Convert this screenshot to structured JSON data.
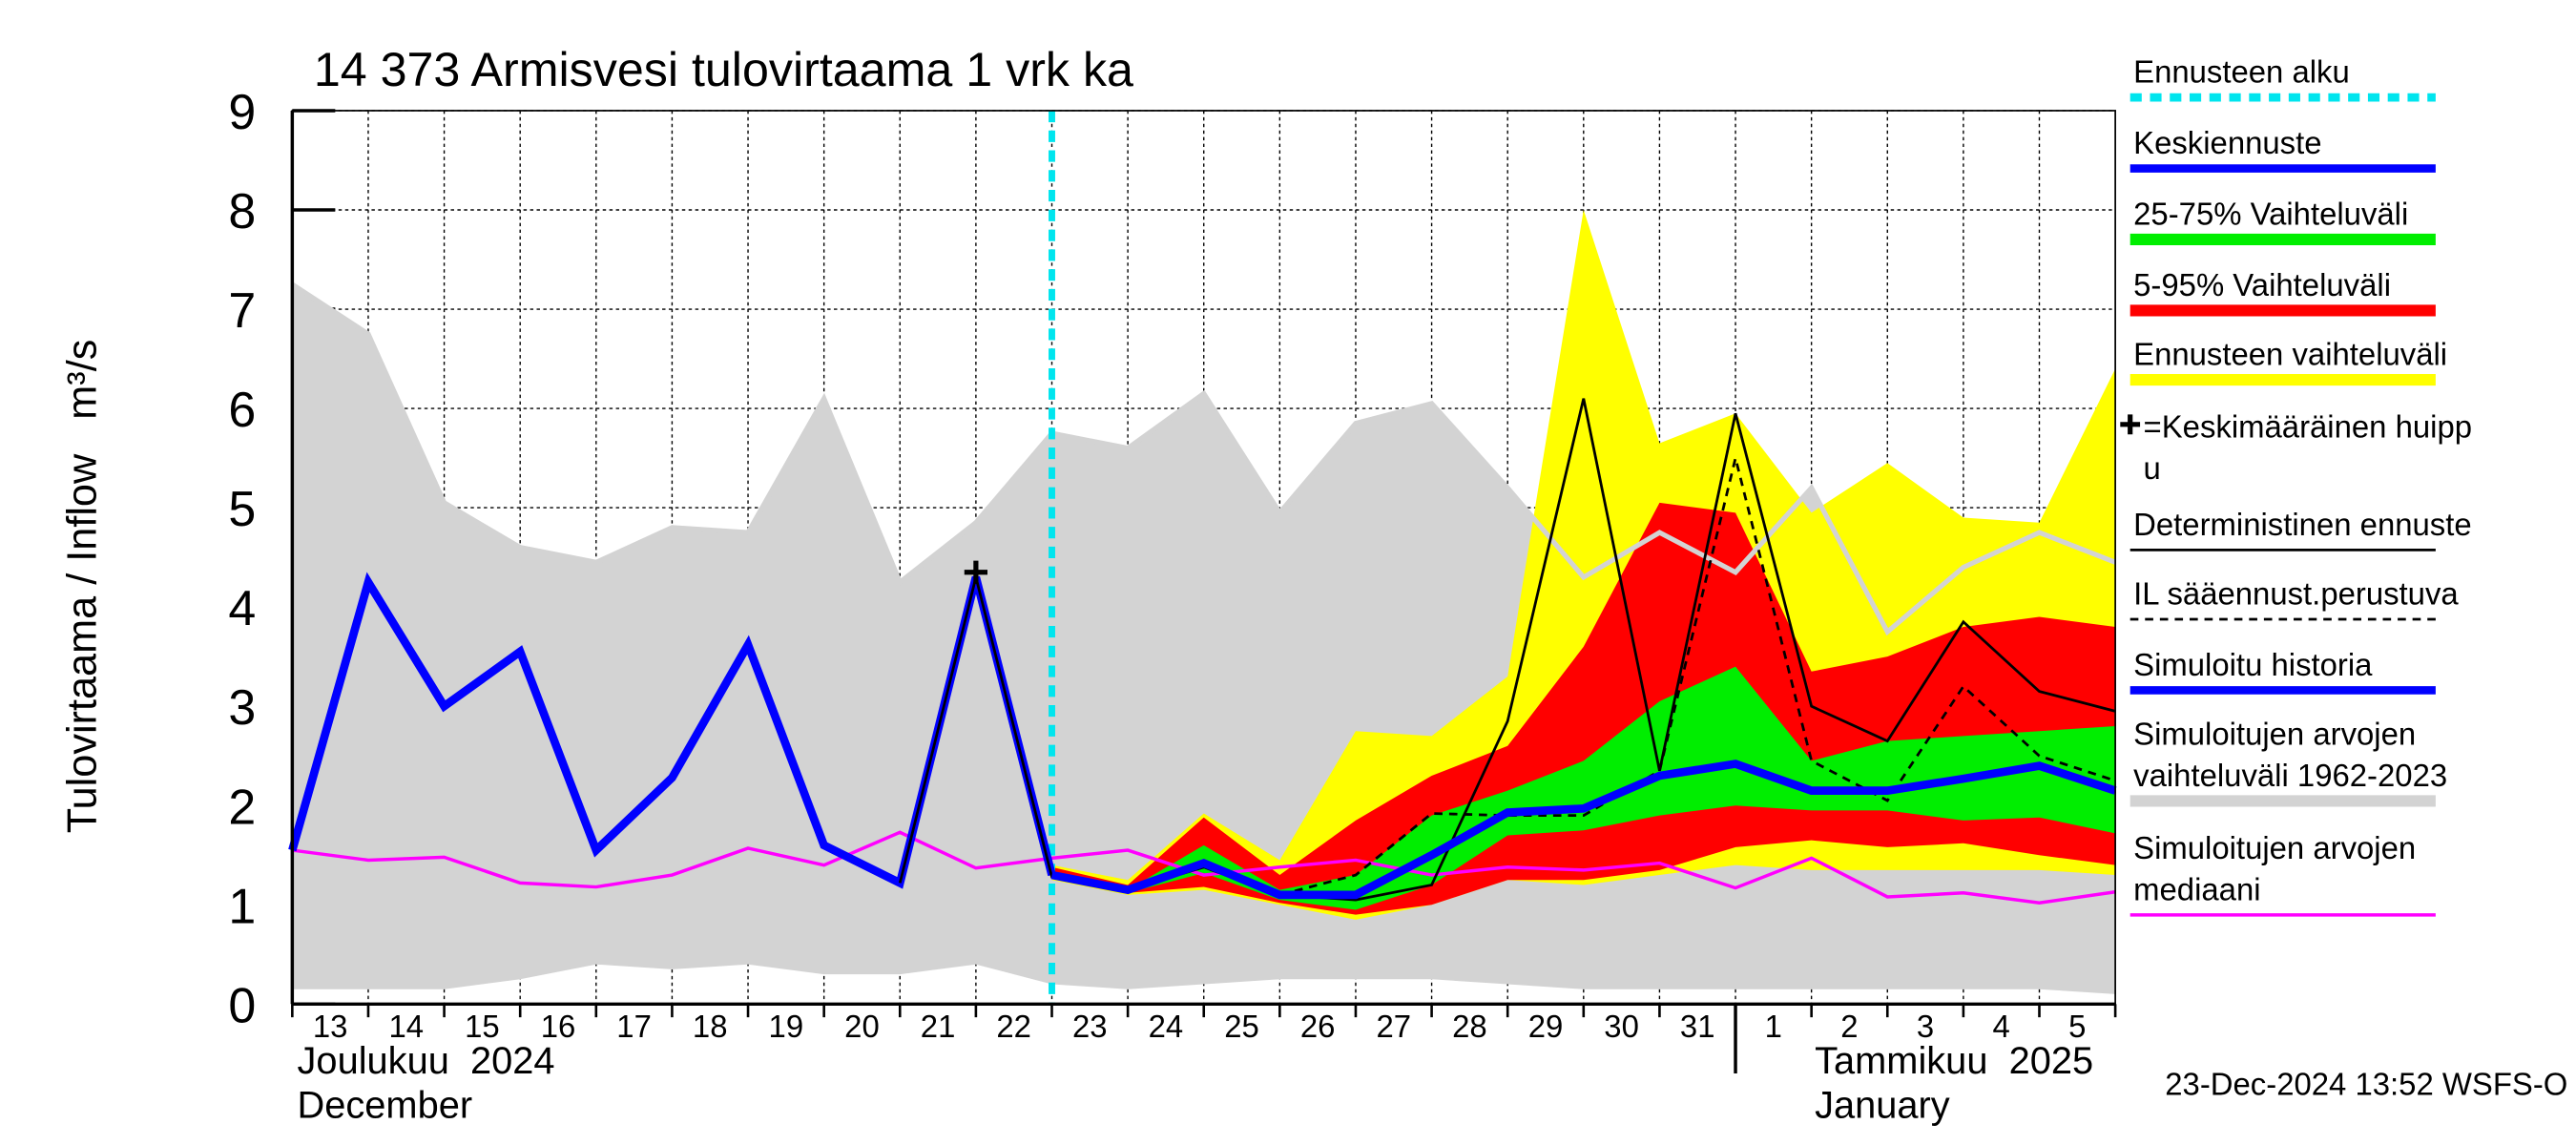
{
  "chart_data": {
    "type": "line",
    "title": "14 373 Armisvesi tulovirtaama 1 vrk ka",
    "y_label": "Tulovirtaama / Inflow   m³/s",
    "timestamp": "23-Dec-2024 13:52 WSFS-O",
    "categories": [
      "13",
      "14",
      "15",
      "16",
      "17",
      "18",
      "19",
      "20",
      "21",
      "22",
      "23",
      "24",
      "25",
      "26",
      "27",
      "28",
      "29",
      "30",
      "31",
      "1",
      "2",
      "3",
      "4",
      "5",
      null
    ],
    "month_labels": [
      {
        "start": "13",
        "lines": [
          "Joulukuu  2024",
          "December"
        ]
      },
      {
        "start": "1",
        "lines": [
          "Tammikuu  2025",
          "January"
        ]
      }
    ],
    "ylim": [
      0,
      9
    ],
    "yticks": [
      0,
      1,
      2,
      3,
      4,
      5,
      6,
      7,
      8,
      9
    ],
    "grid": true,
    "forecast_start": {
      "name": "Ennusteen alku",
      "color": "#00e5ee",
      "category": "23"
    },
    "series": [
      {
        "name": "Keskiennuste",
        "style": "line",
        "color": "#0000ff",
        "width": 5,
        "values": [
          null,
          null,
          null,
          null,
          null,
          null,
          null,
          null,
          null,
          null,
          1.3,
          1.15,
          1.42,
          1.1,
          1.1,
          1.5,
          1.93,
          1.97,
          2.3,
          2.42,
          2.15,
          2.15,
          2.27,
          2.4,
          2.15
        ]
      },
      {
        "name": "25-75% Vaihteluväli",
        "style": "band",
        "color": "#00ee00",
        "upper": [
          null,
          null,
          null,
          null,
          null,
          null,
          null,
          null,
          null,
          null,
          1.33,
          1.15,
          1.6,
          1.15,
          1.3,
          1.9,
          2.15,
          2.45,
          3.05,
          3.4,
          2.45,
          2.65,
          2.7,
          2.75,
          2.8
        ],
        "lower": [
          null,
          null,
          null,
          null,
          null,
          null,
          null,
          null,
          null,
          null,
          1.28,
          1.12,
          1.32,
          1.05,
          0.95,
          1.2,
          1.7,
          1.75,
          1.9,
          2.0,
          1.95,
          1.95,
          1.85,
          1.88,
          1.72
        ]
      },
      {
        "name": "5-95% Vaihteluväli",
        "style": "band",
        "color": "#ff0000",
        "upper": [
          null,
          null,
          null,
          null,
          null,
          null,
          null,
          null,
          null,
          null,
          1.38,
          1.2,
          1.88,
          1.3,
          1.85,
          2.3,
          2.6,
          3.6,
          5.05,
          4.95,
          3.35,
          3.5,
          3.8,
          3.9,
          3.8
        ],
        "lower": [
          null,
          null,
          null,
          null,
          null,
          null,
          null,
          null,
          null,
          null,
          1.27,
          1.12,
          1.18,
          1.02,
          0.9,
          1.0,
          1.25,
          1.25,
          1.35,
          1.58,
          1.65,
          1.58,
          1.62,
          1.5,
          1.4
        ]
      },
      {
        "name": "Ennusteen vaihteluväli",
        "style": "band",
        "color": "#ffff00",
        "upper": [
          null,
          null,
          null,
          null,
          null,
          null,
          null,
          null,
          null,
          null,
          1.4,
          1.25,
          1.92,
          1.45,
          2.75,
          2.7,
          3.3,
          8.0,
          5.65,
          5.95,
          4.95,
          5.45,
          4.9,
          4.85,
          6.4
        ],
        "lower": [
          null,
          null,
          null,
          null,
          null,
          null,
          null,
          null,
          null,
          null,
          1.25,
          1.1,
          1.15,
          1.0,
          0.85,
          1.0,
          1.25,
          1.2,
          1.3,
          1.4,
          1.35,
          1.35,
          1.35,
          1.35,
          1.3
        ]
      },
      {
        "name": [
          "=Keskimääräinen huipp",
          "u"
        ],
        "style": "marker",
        "color": "#000000",
        "values": [
          null,
          null,
          null,
          null,
          null,
          null,
          null,
          null,
          null,
          4.35,
          null,
          null,
          null,
          null,
          null,
          null,
          null,
          null,
          null,
          null,
          null,
          null,
          null,
          null,
          null
        ]
      },
      {
        "name": "Deterministinen ennuste",
        "style": "line",
        "color": "#000000",
        "width": 1.6,
        "values": [
          null,
          null,
          null,
          null,
          null,
          null,
          null,
          null,
          1.22,
          4.3,
          1.28,
          1.15,
          1.38,
          1.1,
          1.05,
          1.2,
          2.85,
          6.1,
          2.35,
          5.95,
          3.0,
          2.65,
          3.85,
          3.15,
          2.95
        ]
      },
      {
        "name": "IL sääennust.perustuva",
        "style": "dashed",
        "color": "#000000",
        "width": 1.6,
        "values": [
          null,
          null,
          null,
          null,
          null,
          null,
          null,
          null,
          null,
          null,
          1.28,
          1.15,
          1.38,
          1.1,
          1.3,
          1.92,
          1.9,
          1.9,
          2.35,
          5.5,
          2.45,
          2.05,
          3.2,
          2.5,
          2.25
        ]
      },
      {
        "name": "Simuloitu historia",
        "style": "line",
        "color": "#0000ff",
        "width": 5,
        "values": [
          1.55,
          4.25,
          3.0,
          3.55,
          1.55,
          2.28,
          3.62,
          1.6,
          1.22,
          4.3,
          1.3,
          null,
          null,
          null,
          null,
          null,
          null,
          null,
          null,
          null,
          null,
          null,
          null,
          null,
          null
        ]
      },
      {
        "name": [
          "Simuloitujen arvojen",
          "vaihteluväli 1962-2023"
        ],
        "style": "band",
        "color": "#d3d3d3",
        "upper": [
          7.25,
          6.75,
          5.05,
          4.6,
          4.45,
          4.8,
          4.75,
          6.1,
          4.25,
          4.85,
          5.75,
          5.6,
          6.15,
          4.95,
          5.85,
          6.05,
          5.2,
          4.3,
          4.75,
          4.35,
          5.2,
          3.75,
          4.4,
          4.75,
          4.45
        ],
        "lower": [
          0.15,
          0.15,
          0.15,
          0.25,
          0.4,
          0.35,
          0.4,
          0.3,
          0.3,
          0.4,
          0.2,
          0.15,
          0.2,
          0.25,
          0.25,
          0.25,
          0.2,
          0.15,
          0.15,
          0.15,
          0.15,
          0.15,
          0.15,
          0.15,
          0.1
        ]
      },
      {
        "name": [
          "Simuloitujen arvojen",
          "mediaani"
        ],
        "style": "line",
        "color": "#ff00ff",
        "width": 2,
        "values": [
          1.55,
          1.45,
          1.48,
          1.22,
          1.18,
          1.3,
          1.57,
          1.4,
          1.73,
          1.37,
          1.47,
          1.55,
          1.3,
          1.38,
          1.45,
          1.3,
          1.38,
          1.35,
          1.42,
          1.17,
          1.47,
          1.08,
          1.12,
          1.02,
          1.13
        ]
      }
    ]
  }
}
